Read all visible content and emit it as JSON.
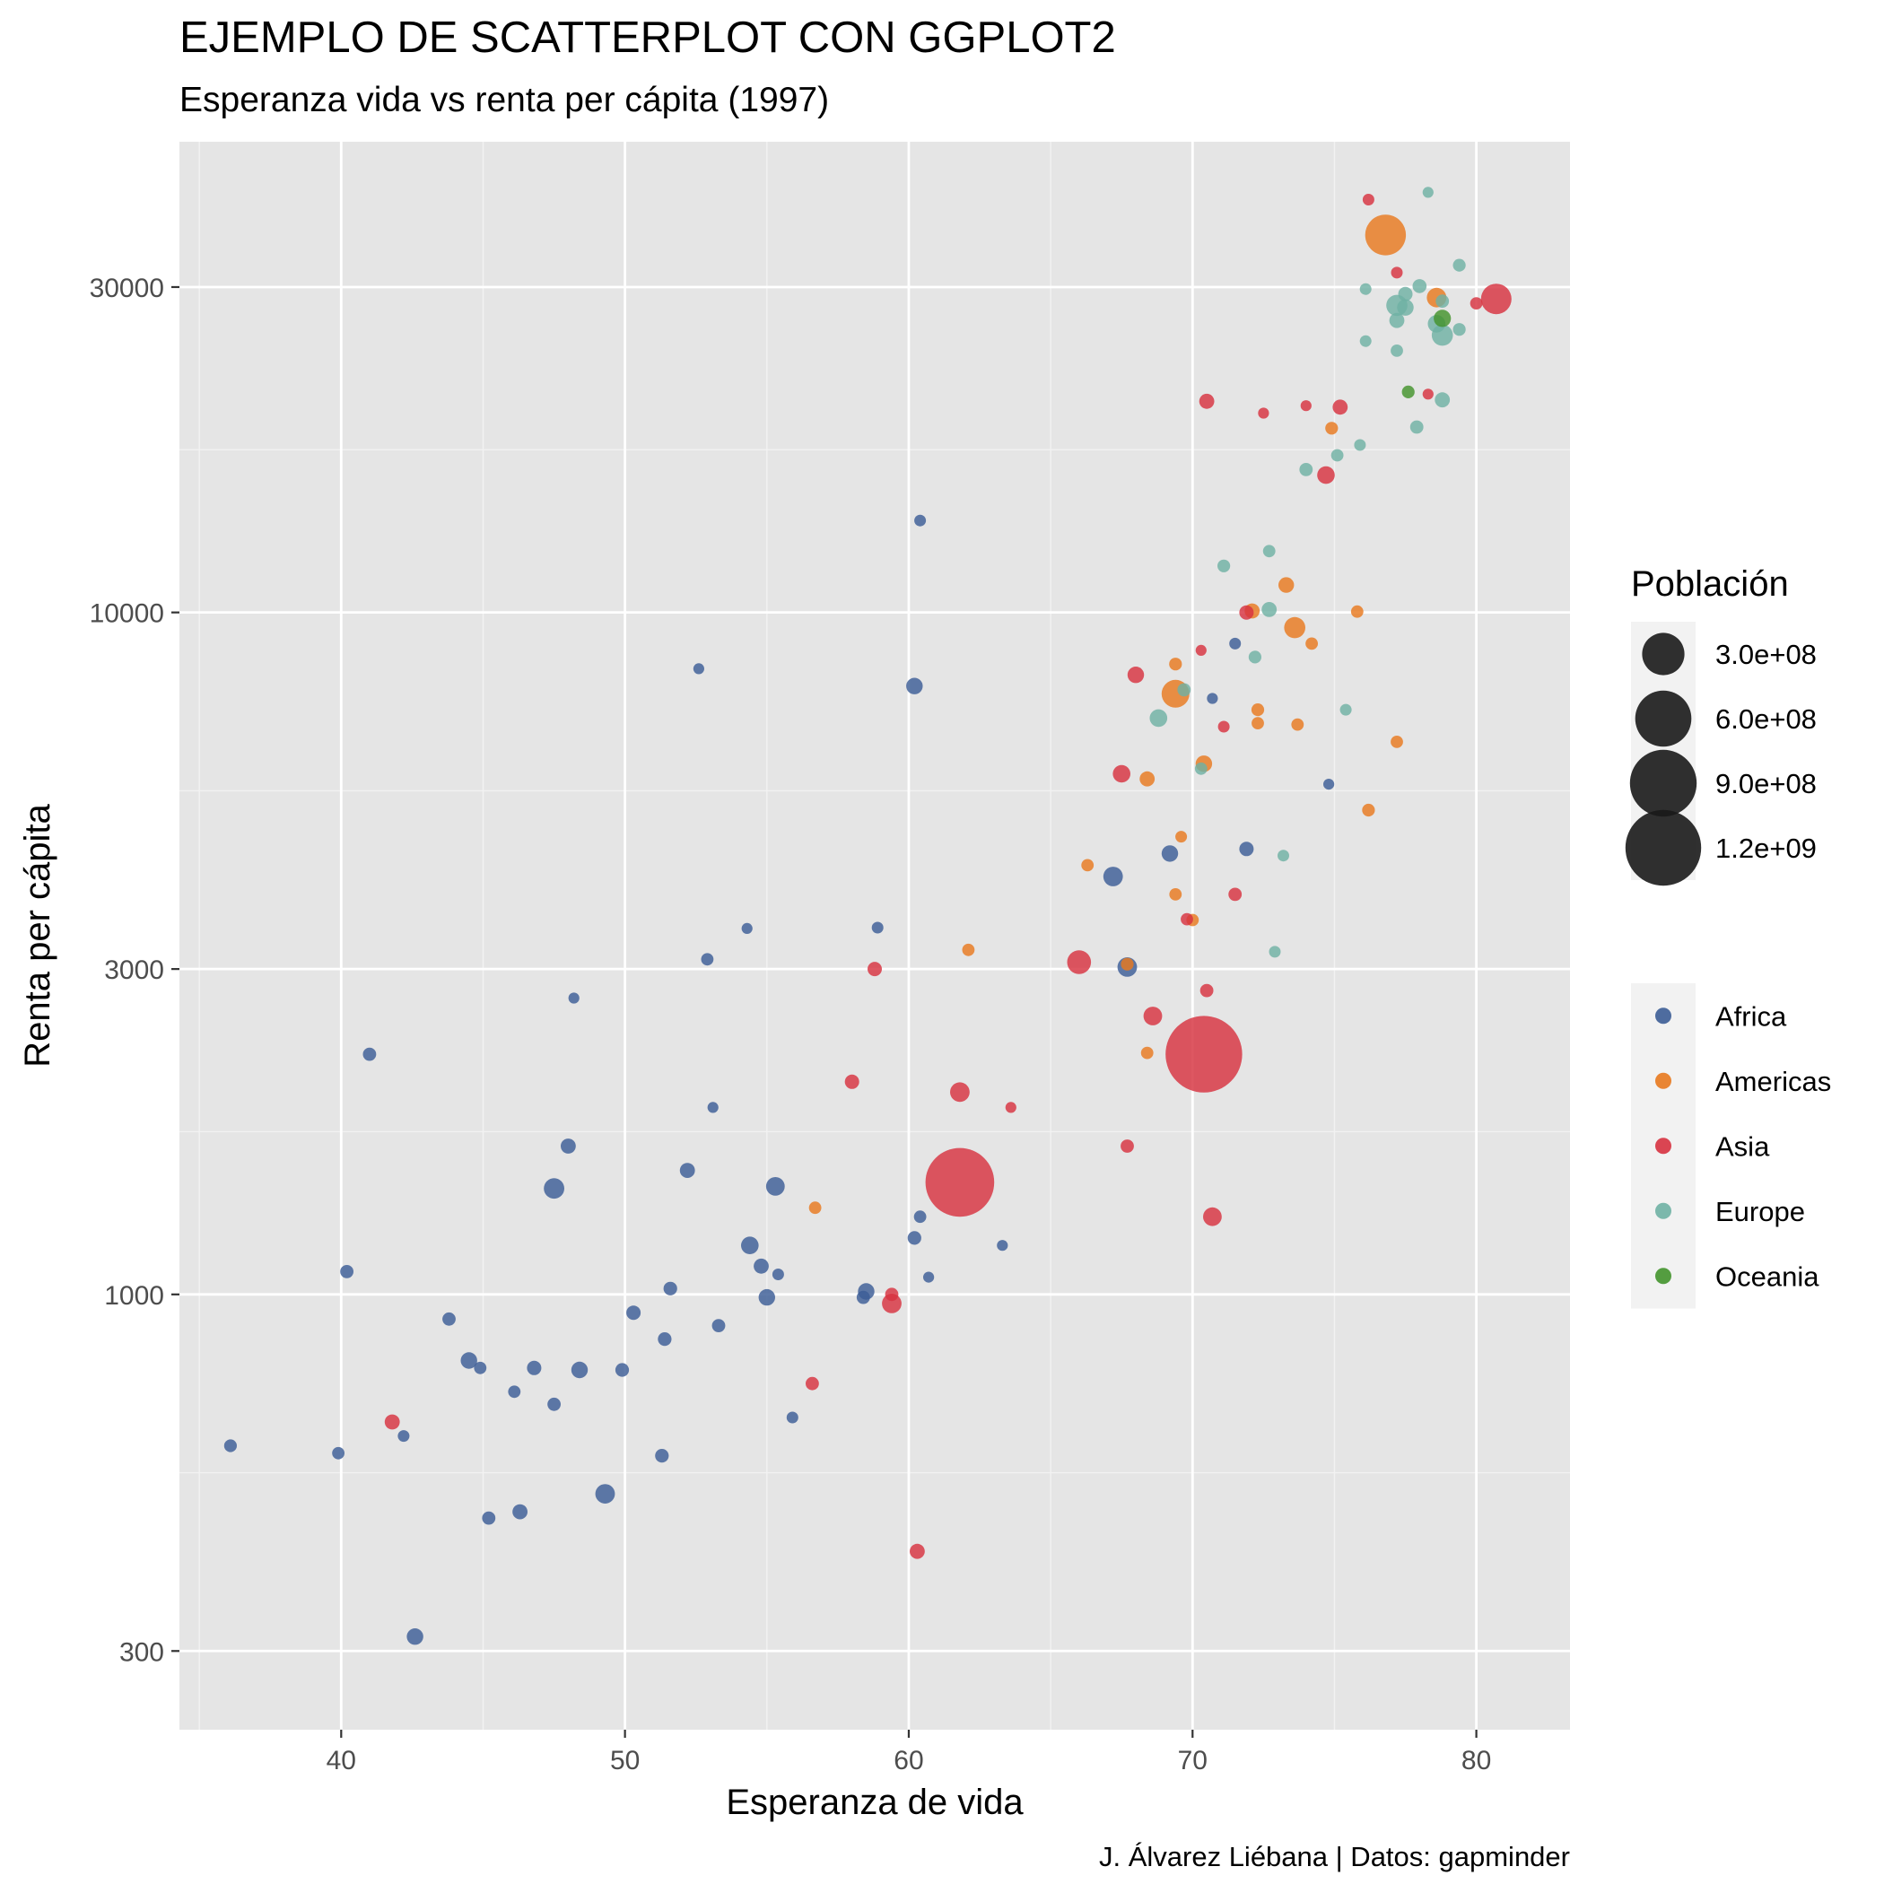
{
  "chart_data": {
    "type": "scatter",
    "title": "EJEMPLO DE SCATTERPLOT CON GGPLOT2",
    "subtitle": "Esperanza vida vs renta per cápita (1997)",
    "caption": "J. Álvarez Liébana | Datos: gapminder",
    "xlabel": "Esperanza de vida",
    "ylabel": "Renta per cápita",
    "x_ticks": [
      40,
      50,
      60,
      70,
      80
    ],
    "y_ticks": [
      300,
      1000,
      3000,
      10000,
      30000
    ],
    "xlim": [
      34.3,
      83.3
    ],
    "ylim": [
      230,
      49000
    ],
    "y_scale": "log10",
    "grid": true,
    "size_legend": {
      "title": "Población",
      "labels": [
        "3.0e+08",
        "6.0e+08",
        "9.0e+08",
        "1.2e+09"
      ],
      "values": [
        300000000,
        600000000,
        900000000,
        1200000000
      ]
    },
    "color_legend": {
      "labels": [
        "Africa",
        "Americas",
        "Asia",
        "Europe",
        "Oceania"
      ],
      "colors": {
        "Africa": "#3c5d96",
        "Americas": "#e8791e",
        "Asia": "#d73240",
        "Europe": "#6fb1a4",
        "Oceania": "#43932c"
      }
    },
    "legend_position": "right",
    "series": [
      {
        "name": "Africa",
        "points": [
          [
            60.4,
            13640,
            2000000.0
          ],
          [
            52.6,
            8270,
            1000000.0
          ],
          [
            60.2,
            7800,
            15000000.0
          ],
          [
            71.5,
            9000,
            2000000.0
          ],
          [
            70.7,
            7480,
            1000000.0
          ],
          [
            74.8,
            5600,
            1000000.0
          ],
          [
            71.9,
            4500,
            8000000.0
          ],
          [
            69.2,
            4430,
            15000000.0
          ],
          [
            67.2,
            4100,
            30000000.0
          ],
          [
            58.9,
            3450,
            2000000.0
          ],
          [
            54.3,
            3440,
            1000000.0
          ],
          [
            52.9,
            3100,
            3000000.0
          ],
          [
            67.7,
            3020,
            30000000.0
          ],
          [
            48.2,
            2720,
            1000000.0
          ],
          [
            41.0,
            2250,
            5000000.0
          ],
          [
            53.1,
            1880,
            1000000.0
          ],
          [
            48.0,
            1650,
            10000000.0
          ],
          [
            52.2,
            1520,
            10000000.0
          ],
          [
            47.5,
            1430,
            35000000.0
          ],
          [
            55.3,
            1440,
            25000000.0
          ],
          [
            60.4,
            1300,
            3000000.0
          ],
          [
            60.2,
            1210,
            6000000.0
          ],
          [
            54.4,
            1180,
            20000000.0
          ],
          [
            54.8,
            1100,
            10000000.0
          ],
          [
            55.4,
            1070,
            2000000.0
          ],
          [
            60.7,
            1060,
            1000000.0
          ],
          [
            63.3,
            1180,
            1000000.0
          ],
          [
            40.2,
            1080,
            5000000.0
          ],
          [
            51.6,
            1020,
            6000000.0
          ],
          [
            58.5,
            1010,
            15000000.0
          ],
          [
            58.4,
            990,
            5000000.0
          ],
          [
            55.0,
            990,
            15000000.0
          ],
          [
            50.3,
            940,
            8000000.0
          ],
          [
            43.8,
            920,
            5000000.0
          ],
          [
            53.3,
            900,
            5000000.0
          ],
          [
            51.4,
            860,
            6000000.0
          ],
          [
            44.5,
            800,
            15000000.0
          ],
          [
            44.9,
            780,
            3000000.0
          ],
          [
            46.8,
            780,
            8000000.0
          ],
          [
            48.4,
            775,
            15000000.0
          ],
          [
            49.9,
            775,
            6000000.0
          ],
          [
            46.1,
            720,
            3000000.0
          ],
          [
            47.5,
            690,
            5000000.0
          ],
          [
            55.9,
            660,
            2000000.0
          ],
          [
            42.2,
            620,
            2000000.0
          ],
          [
            36.1,
            600,
            4000000.0
          ],
          [
            39.9,
            585,
            3000000.0
          ],
          [
            51.3,
            580,
            6000000.0
          ],
          [
            49.3,
            510,
            30000000.0
          ],
          [
            46.3,
            480,
            10000000.0
          ],
          [
            45.2,
            470,
            5000000.0
          ],
          [
            42.6,
            315,
            15000000.0
          ]
        ]
      },
      {
        "name": "Americas",
        "points": [
          [
            76.8,
            35770,
            270000000.0
          ],
          [
            78.6,
            28950,
            30000000.0
          ],
          [
            74.9,
            18630,
            4000000.0
          ],
          [
            73.3,
            10970,
            12000000.0
          ],
          [
            72.1,
            10050,
            10000000.0
          ],
          [
            73.6,
            9500,
            40000000.0
          ],
          [
            75.8,
            10030,
            3000000.0
          ],
          [
            74.2,
            9000,
            3000000.0
          ],
          [
            69.4,
            8400,
            4000000.0
          ],
          [
            69.4,
            7600,
            95000000.0
          ],
          [
            72.3,
            7200,
            4000000.0
          ],
          [
            72.3,
            6880,
            3000000.0
          ],
          [
            73.7,
            6850,
            3000000.0
          ],
          [
            77.2,
            6460,
            3000000.0
          ],
          [
            70.4,
            6000,
            15000000.0
          ],
          [
            68.4,
            5700,
            10000000.0
          ],
          [
            76.2,
            5130,
            4000000.0
          ],
          [
            69.6,
            4690,
            2000000.0
          ],
          [
            66.3,
            4260,
            3000000.0
          ],
          [
            69.4,
            3860,
            3000000.0
          ],
          [
            70.0,
            3540,
            3000000.0
          ],
          [
            62.1,
            3200,
            3000000.0
          ],
          [
            67.7,
            3050,
            4000000.0
          ],
          [
            68.4,
            2260,
            3000000.0
          ],
          [
            56.7,
            1340,
            3000000.0
          ]
        ]
      },
      {
        "name": "Asia",
        "points": [
          [
            76.2,
            40300,
            2000000.0
          ],
          [
            77.2,
            31500,
            2000000.0
          ],
          [
            80.7,
            28820,
            125000000.0
          ],
          [
            80.0,
            28400,
            3000000.0
          ],
          [
            78.3,
            20900,
            1000000.0
          ],
          [
            70.5,
            20400,
            10000000.0
          ],
          [
            72.5,
            19600,
            1000000.0
          ],
          [
            74.0,
            20100,
            1000000.0
          ],
          [
            75.2,
            20000,
            10000000.0
          ],
          [
            74.7,
            15900,
            20000000.0
          ],
          [
            71.9,
            10000,
            8000000.0
          ],
          [
            70.3,
            8800,
            1000000.0
          ],
          [
            68.0,
            8100,
            15000000.0
          ],
          [
            71.1,
            6800,
            2000000.0
          ],
          [
            67.5,
            5800,
            20000000.0
          ],
          [
            71.5,
            3860,
            5000000.0
          ],
          [
            69.8,
            3550,
            3000000.0
          ],
          [
            58.8,
            3000,
            8000000.0
          ],
          [
            66.0,
            3070,
            60000000.0
          ],
          [
            70.5,
            2790,
            5000000.0
          ],
          [
            68.6,
            2560,
            25000000.0
          ],
          [
            70.4,
            2250,
            1230000000.0
          ],
          [
            58.0,
            2050,
            8000000.0
          ],
          [
            61.8,
            1980,
            30000000.0
          ],
          [
            63.6,
            1880,
            1000000.0
          ],
          [
            67.7,
            1650,
            5000000.0
          ],
          [
            61.8,
            1460,
            960000000.0
          ],
          [
            70.7,
            1300,
            25000000.0
          ],
          [
            59.4,
            1000,
            5000000.0
          ],
          [
            59.4,
            970,
            30000000.0
          ],
          [
            56.6,
            740,
            5000000.0
          ],
          [
            41.8,
            650,
            10000000.0
          ],
          [
            60.3,
            420,
            10000000.0
          ]
        ]
      },
      {
        "name": "Europe",
        "points": [
          [
            78.3,
            41300,
            1000000.0
          ],
          [
            79.4,
            32300,
            4000000.0
          ],
          [
            78.0,
            30100,
            7000000.0
          ],
          [
            76.1,
            29800,
            2000000.0
          ],
          [
            77.5,
            29300,
            8000000.0
          ],
          [
            77.2,
            28200,
            40000000.0
          ],
          [
            77.5,
            28000,
            15000000.0
          ],
          [
            78.8,
            28600,
            5000000.0
          ],
          [
            77.2,
            26800,
            10000000.0
          ],
          [
            78.6,
            26500,
            20000000.0
          ],
          [
            79.4,
            26000,
            4000000.0
          ],
          [
            78.8,
            25500,
            40000000.0
          ],
          [
            76.1,
            25000,
            2000000.0
          ],
          [
            77.2,
            24200,
            3000000.0
          ],
          [
            78.8,
            20500,
            10000000.0
          ],
          [
            77.9,
            18700,
            5000000.0
          ],
          [
            75.9,
            17600,
            2000000.0
          ],
          [
            75.1,
            17000,
            3000000.0
          ],
          [
            74.0,
            16200,
            5000000.0
          ],
          [
            72.7,
            12300,
            3000000.0
          ],
          [
            71.1,
            11700,
            4000000.0
          ],
          [
            72.7,
            10100,
            10000000.0
          ],
          [
            72.2,
            8600,
            4000000.0
          ],
          [
            69.7,
            7700,
            5000000.0
          ],
          [
            68.8,
            7000,
            20000000.0
          ],
          [
            75.4,
            7200,
            2000000.0
          ],
          [
            70.3,
            5900,
            3000000.0
          ],
          [
            73.2,
            4400,
            2000000.0
          ],
          [
            72.9,
            3180,
            2000000.0
          ]
        ]
      },
      {
        "name": "Oceania",
        "points": [
          [
            78.8,
            26990,
            18000000.0
          ],
          [
            77.6,
            21050,
            4000000.0
          ]
        ]
      }
    ]
  }
}
